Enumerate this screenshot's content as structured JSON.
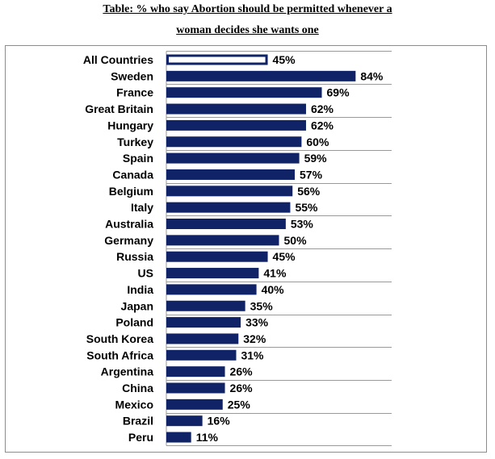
{
  "title": {
    "line1": "Table: % who say Abortion should be permitted whenever a",
    "line2": "woman decides she wants one"
  },
  "colors": {
    "bar": "#0f2366",
    "highlight_fill": "#ffffff",
    "highlight_stroke": "#0f2366",
    "grid": "#999999",
    "text": "#000000"
  },
  "chart_data": {
    "type": "bar",
    "orientation": "horizontal",
    "title": "Table: % who say Abortion should be permitted whenever a woman decides she wants one",
    "xlabel": "",
    "ylabel": "",
    "xlim": [
      0,
      100
    ],
    "grid": true,
    "legend": "none",
    "value_suffix": "%",
    "categories": [
      "All Countries",
      "Sweden",
      "France",
      "Great Britain",
      "Hungary",
      "Turkey",
      "Spain",
      "Canada",
      "Belgium",
      "Italy",
      "Australia",
      "Germany",
      "Russia",
      "US",
      "India",
      "Japan",
      "Poland",
      "South Korea",
      "South Africa",
      "Argentina",
      "China",
      "Mexico",
      "Brazil",
      "Peru"
    ],
    "values": [
      45,
      84,
      69,
      62,
      62,
      60,
      59,
      57,
      56,
      55,
      53,
      50,
      45,
      41,
      40,
      35,
      33,
      32,
      31,
      26,
      26,
      25,
      16,
      11
    ],
    "highlighted_categories": [
      "All Countries"
    ]
  }
}
